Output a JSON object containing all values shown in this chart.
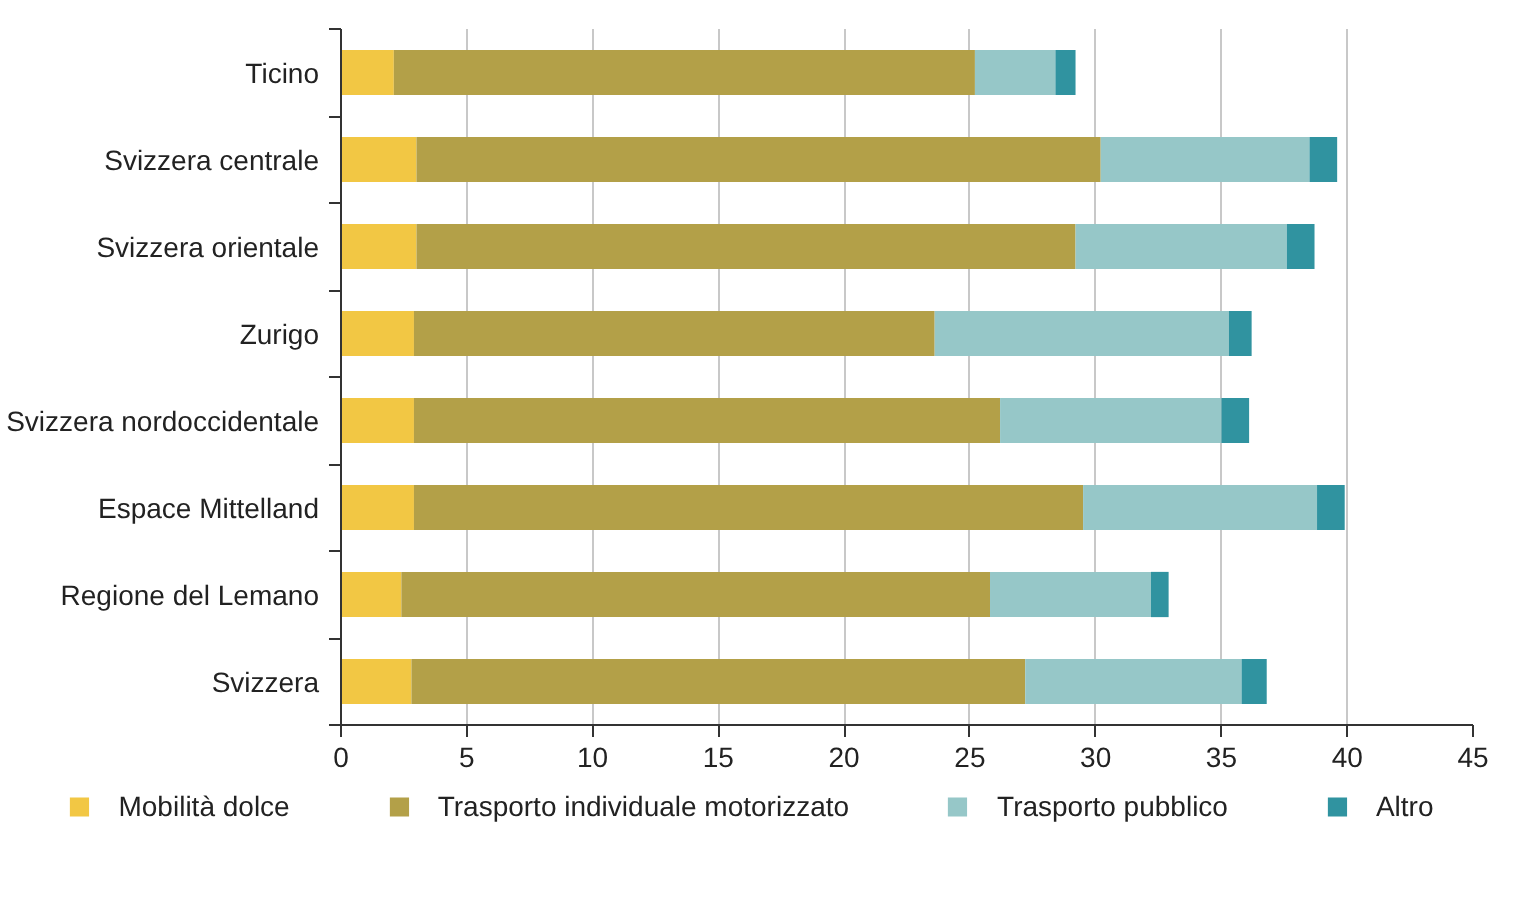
{
  "chart_data": {
    "type": "bar",
    "orientation": "horizontal",
    "stacked": true,
    "categories": [
      "Ticino",
      "Svizzera centrale",
      "Svizzera orientale",
      "Zurigo",
      "Svizzera nordoccidentale",
      "Espace Mittelland",
      "Regione del Lemano",
      "Svizzera"
    ],
    "series": [
      {
        "name": "Mobilità dolce",
        "color": "#f2c744",
        "values": [
          2.1,
          3.0,
          3.0,
          2.9,
          2.9,
          2.9,
          2.4,
          2.8
        ]
      },
      {
        "name": "Trasporto individuale motorizzato",
        "color": "#b3a048",
        "values": [
          23.1,
          27.2,
          26.2,
          20.7,
          23.3,
          26.6,
          23.4,
          24.4
        ]
      },
      {
        "name": "Trasporto pubblico",
        "color": "#96c7c8",
        "values": [
          3.2,
          8.3,
          8.4,
          11.7,
          8.8,
          9.3,
          6.4,
          8.6
        ]
      },
      {
        "name": "Altro",
        "color": "#3093a0",
        "values": [
          0.8,
          1.1,
          1.1,
          0.9,
          1.1,
          1.1,
          0.7,
          1.0
        ]
      }
    ],
    "xlim": [
      0,
      45
    ],
    "xticks": [
      0,
      5,
      10,
      15,
      20,
      25,
      30,
      35,
      40,
      45
    ],
    "grid": "x",
    "legend": "bottom"
  }
}
